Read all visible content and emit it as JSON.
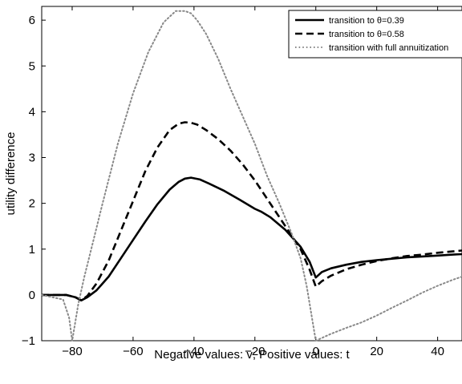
{
  "chart_data": {
    "type": "line",
    "title": "",
    "xlabel": "Negative values: v; Positive values: t",
    "ylabel": "utility difference",
    "xlim": [
      -90,
      48
    ],
    "ylim": [
      -1,
      6.3
    ],
    "xticks": [
      -80,
      -60,
      -40,
      -20,
      0,
      20,
      40
    ],
    "yticks": [
      -1,
      0,
      1,
      2,
      3,
      4,
      5,
      6
    ],
    "grid": false,
    "legend_position": "top-right",
    "series": [
      {
        "name": "transition to θ=0.39",
        "style": "solid",
        "color": "#000000",
        "x": [
          -90,
          -82,
          -79,
          -77,
          -75,
          -72,
          -68,
          -64,
          -60,
          -56,
          -52,
          -48,
          -45,
          -43,
          -41,
          -38,
          -35,
          -30,
          -25,
          -20,
          -18,
          -15,
          -10,
          -5,
          -2,
          0,
          2,
          5,
          10,
          15,
          20,
          25,
          30,
          35,
          40,
          45,
          48
        ],
        "y": [
          0,
          0,
          -0.05,
          -0.12,
          -0.05,
          0.1,
          0.4,
          0.8,
          1.2,
          1.6,
          1.98,
          2.3,
          2.47,
          2.54,
          2.56,
          2.52,
          2.43,
          2.27,
          2.08,
          1.88,
          1.82,
          1.7,
          1.42,
          1.05,
          0.72,
          0.38,
          0.5,
          0.58,
          0.66,
          0.72,
          0.76,
          0.79,
          0.82,
          0.84,
          0.86,
          0.88,
          0.89
        ]
      },
      {
        "name": "transition to θ=0.58",
        "style": "dashed",
        "color": "#000000",
        "x": [
          -90,
          -82,
          -79,
          -77,
          -75,
          -72,
          -68,
          -64,
          -60,
          -56,
          -52,
          -48,
          -45,
          -43,
          -41,
          -39,
          -36,
          -32,
          -28,
          -24,
          -20,
          -15,
          -10,
          -5,
          -2,
          0,
          2,
          5,
          10,
          15,
          20,
          25,
          30,
          35,
          40,
          45,
          48
        ],
        "y": [
          0,
          0,
          -0.05,
          -0.12,
          -0.02,
          0.25,
          0.75,
          1.4,
          2.05,
          2.7,
          3.22,
          3.6,
          3.74,
          3.77,
          3.76,
          3.72,
          3.6,
          3.4,
          3.15,
          2.85,
          2.5,
          2.0,
          1.5,
          1.0,
          0.55,
          0.18,
          0.3,
          0.42,
          0.56,
          0.66,
          0.74,
          0.8,
          0.85,
          0.88,
          0.92,
          0.95,
          0.97
        ]
      },
      {
        "name": "transition with full annuitization",
        "style": "dotted",
        "color": "#888888",
        "x": [
          -90,
          -83,
          -81,
          -80,
          -79,
          -78,
          -76,
          -73,
          -70,
          -65,
          -60,
          -55,
          -50,
          -46,
          -43,
          -41,
          -39,
          -36,
          -32,
          -28,
          -24,
          -20,
          -16,
          -12,
          -8,
          -5,
          -3,
          -1,
          0,
          5,
          10,
          15,
          20,
          25,
          30,
          35,
          40,
          45,
          48
        ],
        "y": [
          0,
          -0.1,
          -0.5,
          -1,
          -0.6,
          -0.2,
          0.4,
          1.2,
          2.0,
          3.3,
          4.4,
          5.3,
          5.95,
          6.2,
          6.2,
          6.15,
          6.0,
          5.7,
          5.15,
          4.5,
          3.9,
          3.3,
          2.6,
          2.0,
          1.35,
          0.8,
          0.2,
          -0.6,
          -1.0,
          -0.85,
          -0.72,
          -0.6,
          -0.45,
          -0.28,
          -0.12,
          0.05,
          0.2,
          0.33,
          0.4
        ]
      }
    ]
  }
}
